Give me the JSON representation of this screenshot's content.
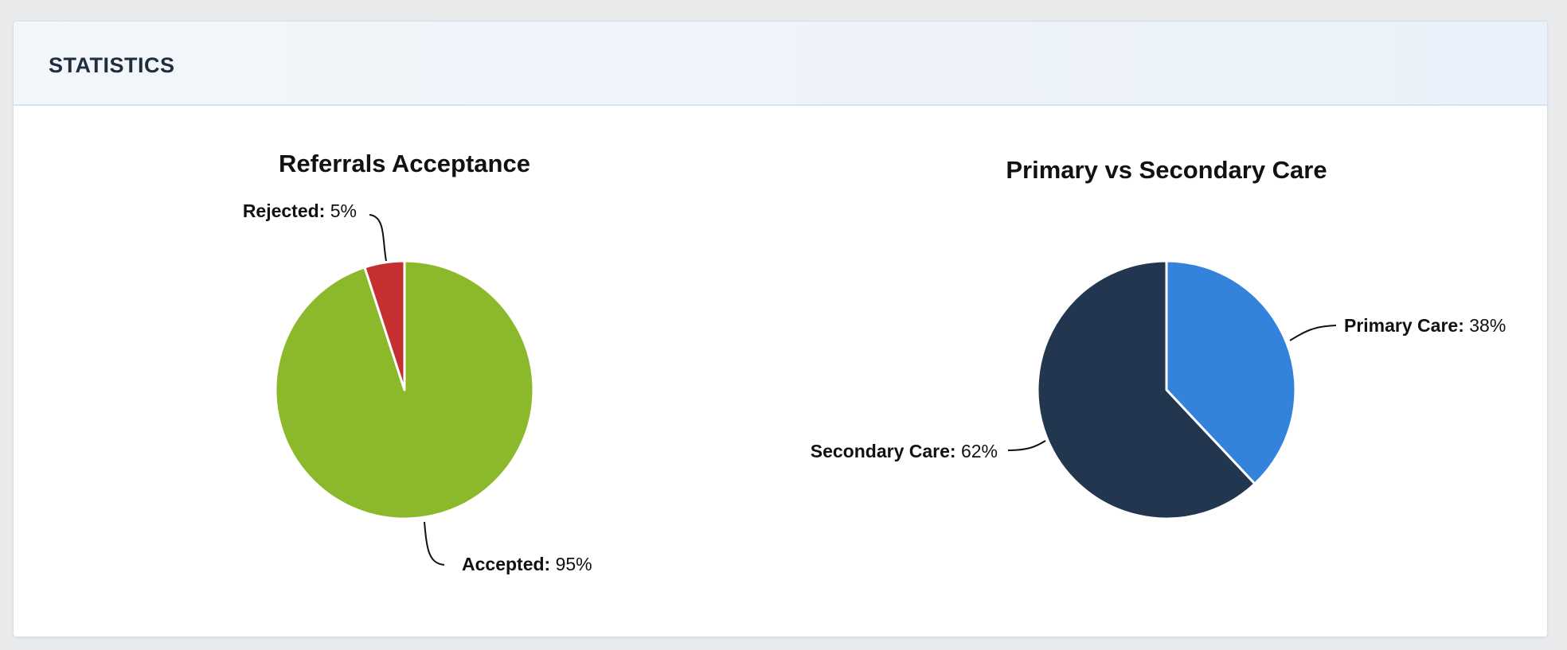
{
  "panel": {
    "title": "STATISTICS"
  },
  "chart_data": [
    {
      "type": "pie",
      "title": "Referrals Acceptance",
      "slices": [
        {
          "label": "Accepted",
          "value": 95,
          "value_text": "95%",
          "color": "#8cb82b"
        },
        {
          "label": "Rejected",
          "value": 5,
          "value_text": "5%",
          "color": "#c62f30"
        }
      ]
    },
    {
      "type": "pie",
      "title": "Primary vs Secondary Care",
      "slices": [
        {
          "label": "Primary Care",
          "value": 38,
          "value_text": "38%",
          "color": "#3383dc"
        },
        {
          "label": "Secondary Care",
          "value": 62,
          "value_text": "62%",
          "color": "#22364f"
        }
      ]
    }
  ]
}
